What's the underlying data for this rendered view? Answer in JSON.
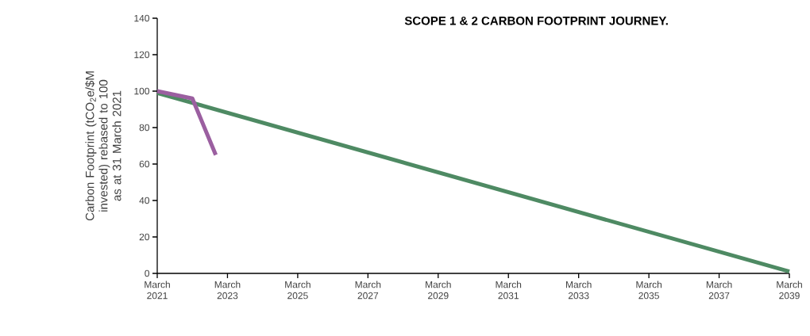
{
  "chart_data": {
    "type": "line",
    "title": "SCOPE 1 & 2 CARBON FOOTPRINT JOURNEY.",
    "ylabel": "Carbon Footprint (tCO$_{2}$e/$M invested) rebased to 100 as at 31 March 2021",
    "series": [
      {
        "color": "#4e8a63",
        "x": [
          "2021-03",
          "2039-03"
        ],
        "values": [
          99,
          1
        ]
      },
      {
        "color": "#9b5fa0",
        "x": [
          "2021-03",
          "2022-03",
          "2022-11"
        ],
        "values": [
          100,
          96,
          65
        ]
      }
    ],
    "xlim": [
      "2021-03",
      "2039-03"
    ],
    "xticks": [
      {
        "value": "2021-03",
        "label": "March 2021"
      },
      {
        "value": "2023-03",
        "label": "March 2023"
      },
      {
        "value": "2025-03",
        "label": "March 2025"
      },
      {
        "value": "2027-03",
        "label": "March 2027"
      },
      {
        "value": "2029-03",
        "label": "March 2029"
      },
      {
        "value": "2031-03",
        "label": "March 2031"
      },
      {
        "value": "2033-03",
        "label": "March 2033"
      },
      {
        "value": "2035-03",
        "label": "March 2035"
      },
      {
        "value": "2037-03",
        "label": "March 2037"
      },
      {
        "value": "2039-03",
        "label": "March 2039"
      }
    ],
    "ylim": [
      0,
      140
    ],
    "yticks": [
      0,
      20,
      40,
      60,
      80,
      100,
      120,
      140
    ],
    "line_style": "solid"
  }
}
